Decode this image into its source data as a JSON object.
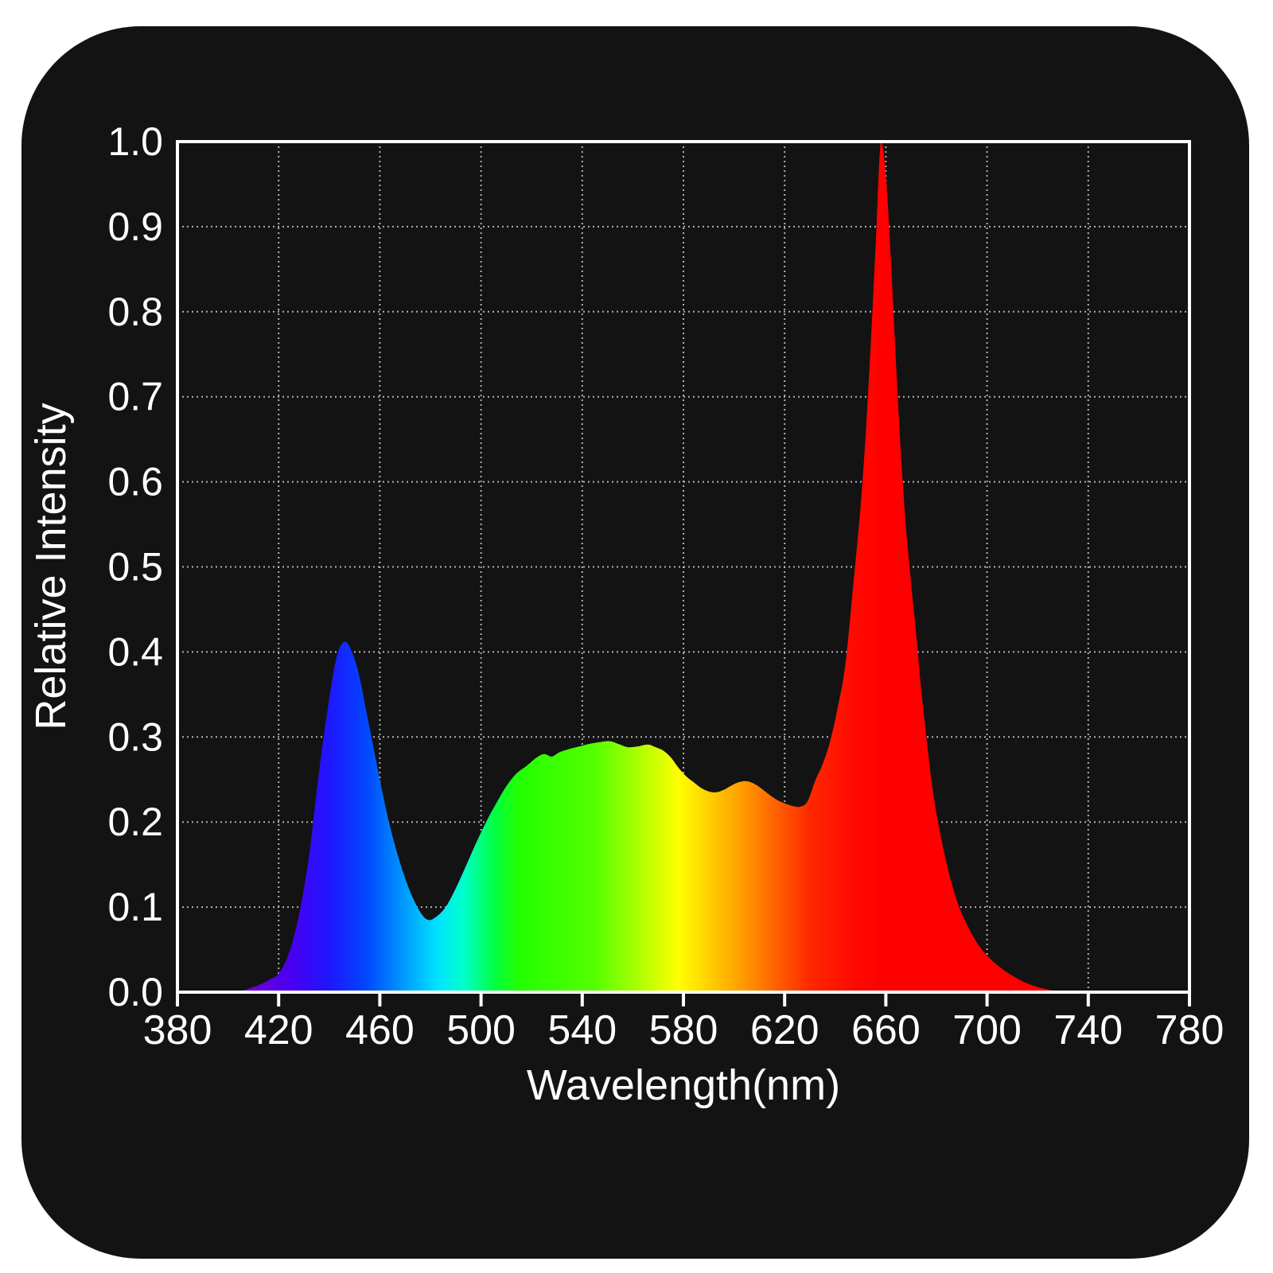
{
  "colors": {
    "page_bg": "#ffffff",
    "card_bg": "#131313",
    "axis_color": "#ffffff",
    "grid_color": "#cccccc",
    "label_color": "#ffffff"
  },
  "chart_data": {
    "type": "area",
    "title": "",
    "xlabel": "Wavelength(nm)",
    "ylabel": "Relative Intensity",
    "xlim": [
      380,
      780
    ],
    "ylim": [
      0.0,
      1.0
    ],
    "grid": "dotted",
    "legend": "none",
    "x_ticks": [
      380,
      420,
      460,
      500,
      540,
      580,
      620,
      660,
      700,
      740,
      780
    ],
    "x_tick_labels": [
      "380",
      "420",
      "460",
      "500",
      "540",
      "580",
      "620",
      "660",
      "700",
      "740",
      "780"
    ],
    "y_ticks": [
      0.0,
      0.1,
      0.2,
      0.3,
      0.4,
      0.5,
      0.6,
      0.7,
      0.8,
      0.9,
      1.0
    ],
    "y_tick_labels": [
      "0.0",
      "0.1",
      "0.2",
      "0.3",
      "0.4",
      "0.5",
      "0.6",
      "0.7",
      "0.8",
      "0.9",
      "1.0"
    ],
    "series": [
      {
        "name": "relative-intensity-spectrum",
        "x": [
          404,
          408,
          412,
          416,
          420,
          424,
          428,
          432,
          436,
          440,
          443,
          446,
          449,
          452,
          455,
          458,
          461,
          464,
          468,
          472,
          476,
          479,
          482,
          486,
          490,
          494,
          498,
          502,
          506,
          510,
          514,
          518,
          522,
          525,
          528,
          531,
          535,
          539,
          543,
          547,
          551,
          555,
          558,
          562,
          566,
          569,
          572,
          575,
          578,
          581,
          584,
          587,
          590,
          593,
          596,
          599,
          602,
          605,
          608,
          611,
          614,
          617,
          620,
          623,
          626,
          629,
          632,
          635,
          638,
          641,
          644,
          647,
          650,
          652,
          654,
          656,
          658,
          660,
          662,
          664,
          666,
          668,
          670,
          672,
          674,
          676,
          678,
          680,
          683,
          686,
          689,
          692,
          695,
          698,
          701,
          704,
          708,
          712,
          716,
          720,
          724,
          728,
          732
        ],
        "y": [
          0.0,
          0.004,
          0.008,
          0.014,
          0.022,
          0.045,
          0.09,
          0.16,
          0.26,
          0.345,
          0.395,
          0.412,
          0.4,
          0.37,
          0.325,
          0.28,
          0.235,
          0.195,
          0.152,
          0.118,
          0.094,
          0.085,
          0.088,
          0.1,
          0.122,
          0.148,
          0.175,
          0.2,
          0.222,
          0.242,
          0.257,
          0.266,
          0.276,
          0.28,
          0.277,
          0.282,
          0.286,
          0.289,
          0.292,
          0.294,
          0.295,
          0.291,
          0.288,
          0.289,
          0.291,
          0.288,
          0.284,
          0.276,
          0.264,
          0.254,
          0.247,
          0.24,
          0.236,
          0.235,
          0.238,
          0.243,
          0.247,
          0.248,
          0.245,
          0.239,
          0.232,
          0.226,
          0.222,
          0.219,
          0.218,
          0.224,
          0.248,
          0.268,
          0.295,
          0.335,
          0.385,
          0.475,
          0.57,
          0.655,
          0.76,
          0.88,
          1.0,
          0.96,
          0.86,
          0.74,
          0.63,
          0.545,
          0.48,
          0.42,
          0.355,
          0.3,
          0.25,
          0.21,
          0.165,
          0.128,
          0.1,
          0.08,
          0.063,
          0.05,
          0.04,
          0.032,
          0.023,
          0.016,
          0.01,
          0.006,
          0.003,
          0.001,
          0.0
        ]
      }
    ],
    "annotations": {
      "blue_peak": {
        "x_nm": 446,
        "y": 0.41
      },
      "cyan_dip": {
        "x_nm": 479,
        "y": 0.085
      },
      "green_plateau": {
        "x_nm": 551,
        "y": 0.295
      },
      "orange_bump": {
        "x_nm": 604,
        "y": 0.248
      },
      "red_valley": {
        "x_nm": 626,
        "y": 0.218
      },
      "red_peak": {
        "x_nm": 658,
        "y": 1.0
      }
    },
    "gradient_stops": [
      {
        "nm": 380,
        "color": "#4c00b0"
      },
      {
        "nm": 410,
        "color": "#6b00d8"
      },
      {
        "nm": 425,
        "color": "#4800f0"
      },
      {
        "nm": 440,
        "color": "#1f16ff"
      },
      {
        "nm": 455,
        "color": "#0048ff"
      },
      {
        "nm": 470,
        "color": "#009cff"
      },
      {
        "nm": 483,
        "color": "#00e4ff"
      },
      {
        "nm": 493,
        "color": "#00ffcc"
      },
      {
        "nm": 505,
        "color": "#00ff44"
      },
      {
        "nm": 515,
        "color": "#22ff00"
      },
      {
        "nm": 545,
        "color": "#55ff00"
      },
      {
        "nm": 562,
        "color": "#aaff00"
      },
      {
        "nm": 578,
        "color": "#ffff00"
      },
      {
        "nm": 592,
        "color": "#ffc800"
      },
      {
        "nm": 604,
        "color": "#ff9900"
      },
      {
        "nm": 616,
        "color": "#ff6400"
      },
      {
        "nm": 630,
        "color": "#ff2800"
      },
      {
        "nm": 648,
        "color": "#ff0800"
      },
      {
        "nm": 660,
        "color": "#ff0000"
      },
      {
        "nm": 780,
        "color": "#ff0000"
      }
    ]
  }
}
